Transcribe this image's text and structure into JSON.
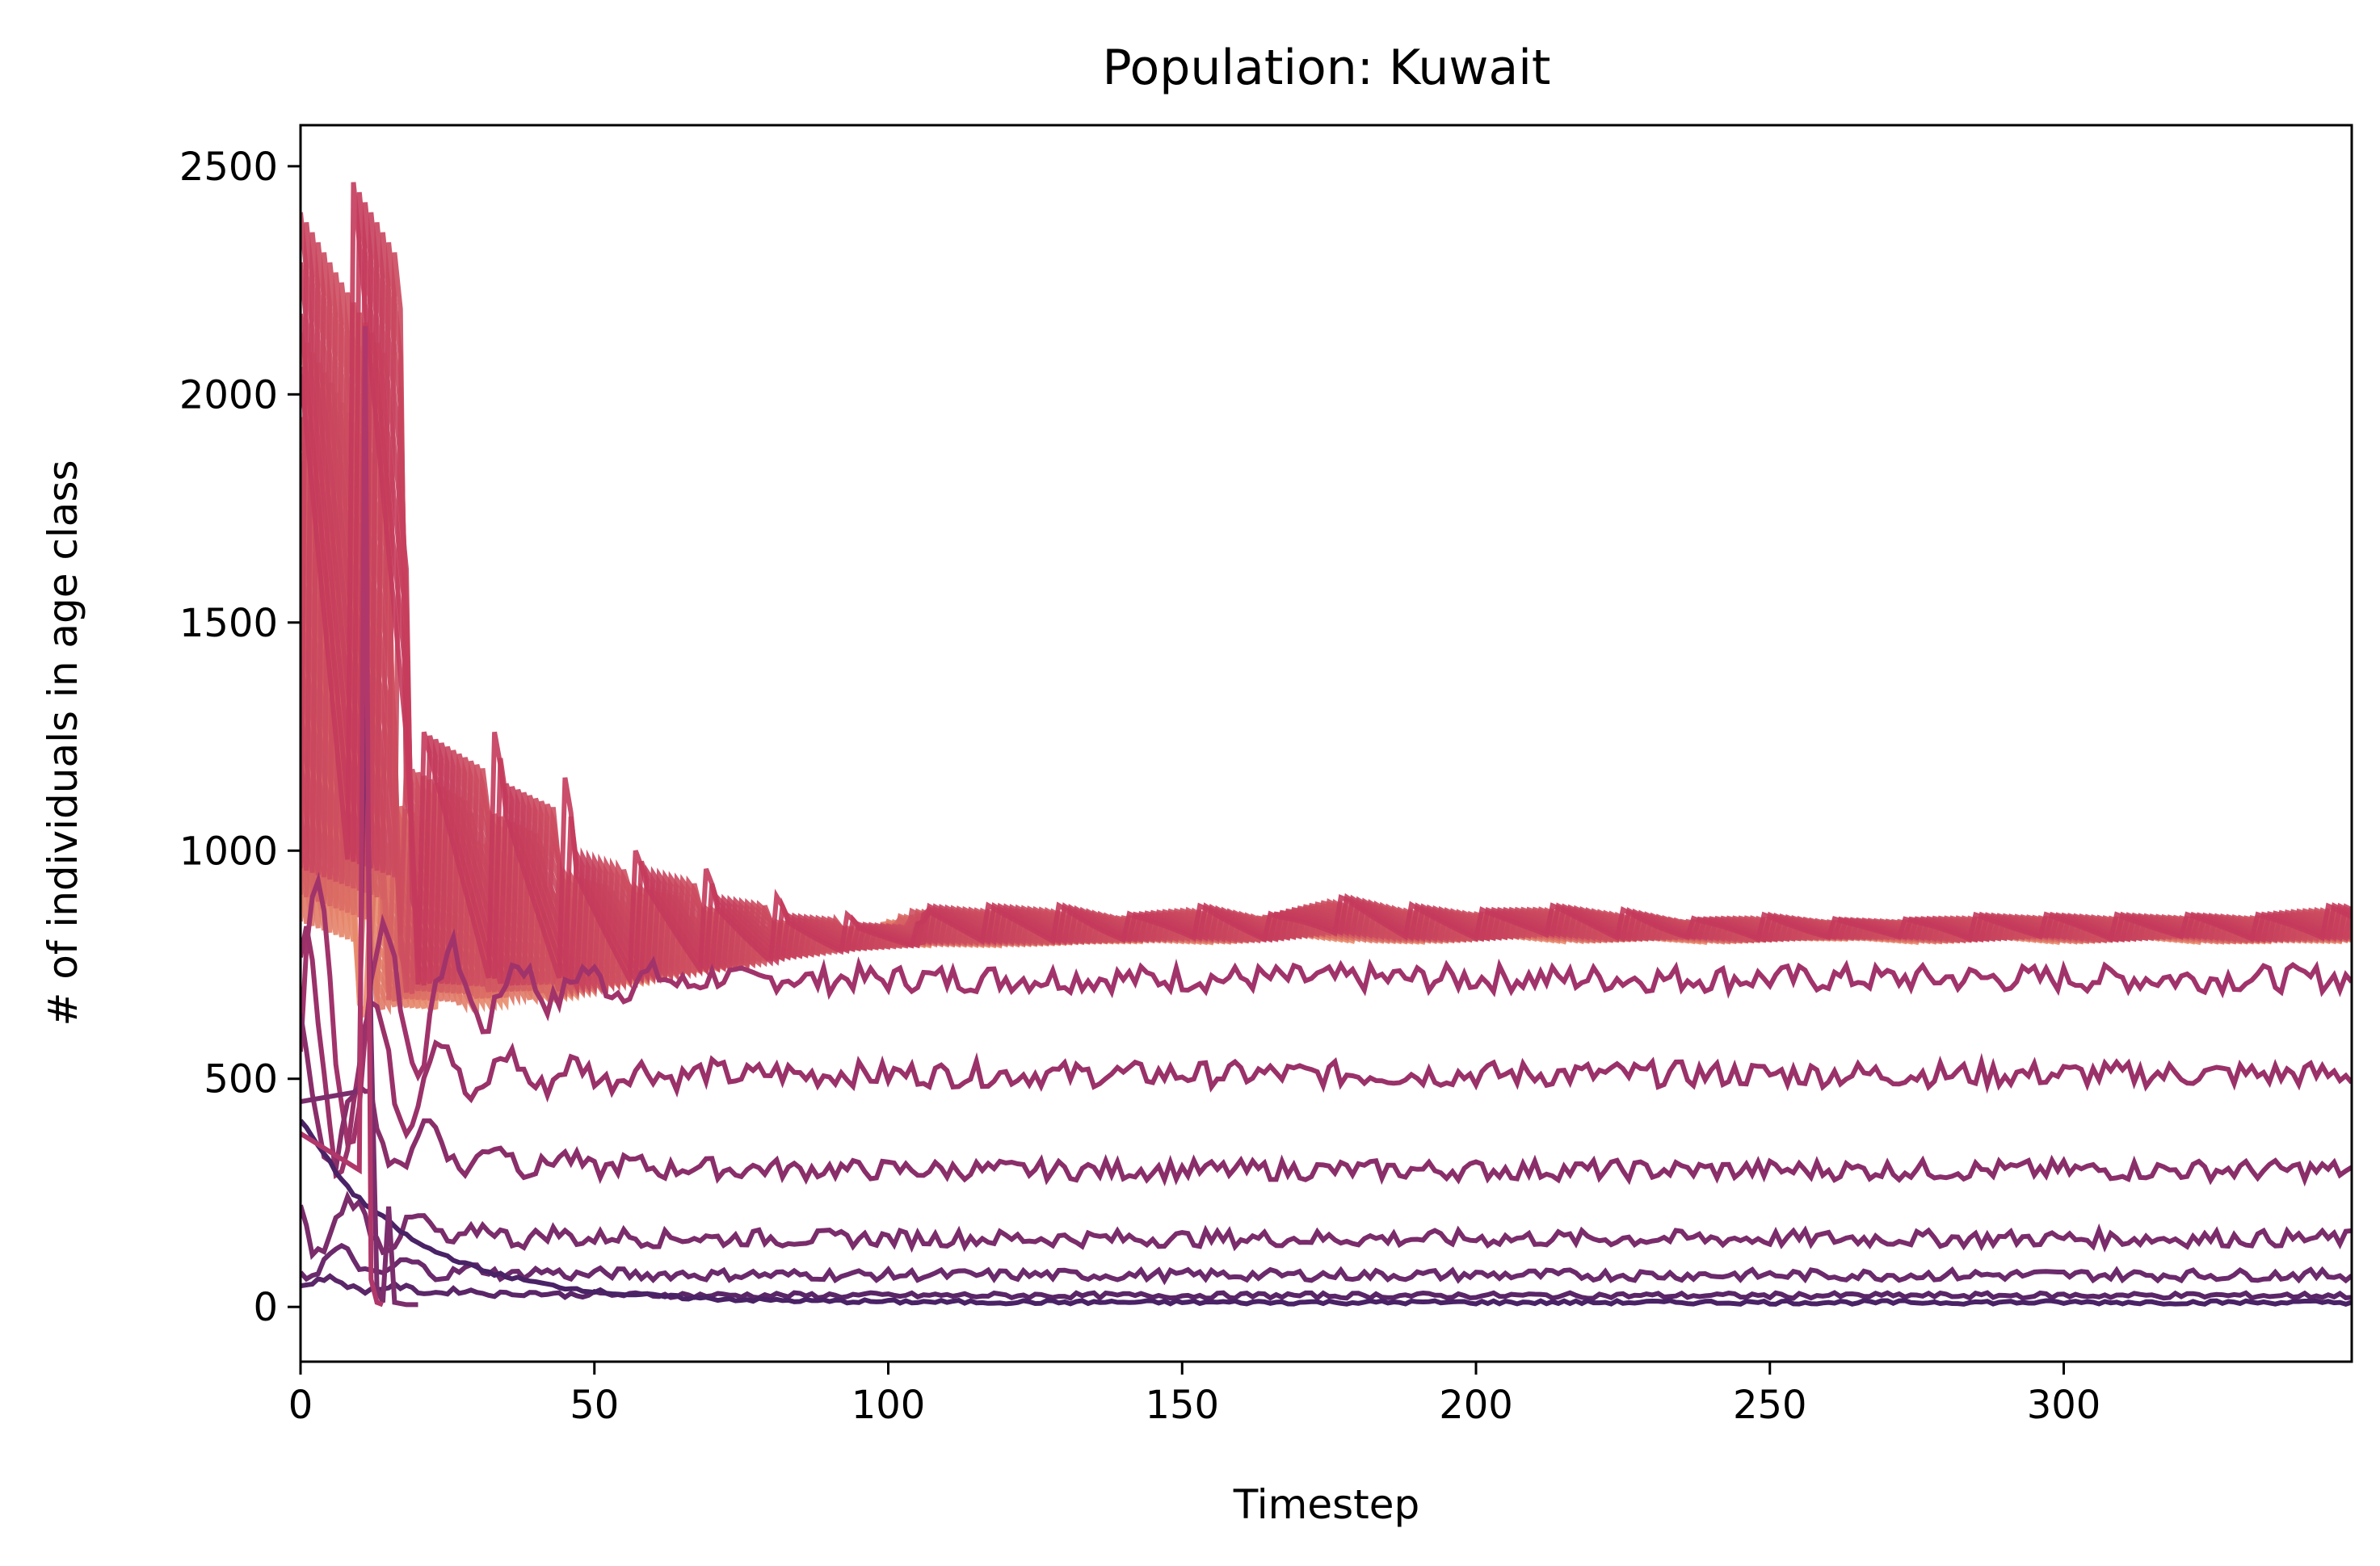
{
  "chart_data": {
    "type": "line",
    "title": "Population: Kuwait",
    "xlabel": "Timestep",
    "ylabel": "# of individuals in age class",
    "xlim": [
      0,
      349
    ],
    "ylim": [
      -120,
      2590
    ],
    "x_ticks": [
      0,
      50,
      100,
      150,
      200,
      250,
      300
    ],
    "y_ticks": [
      0,
      500,
      1000,
      1500,
      2000,
      2500
    ],
    "grid": false,
    "legend": "none",
    "colormap": "flare",
    "colors": {
      "oldest_class": "#e98d6b",
      "upper_band": "#d4435a",
      "middle_band": "#a1336b",
      "lower_band": "#6b2a6b",
      "youngest_class": "#4a2266"
    },
    "upper_band": {
      "description_levels": "approximate envelope of the many stacked oldest age classes",
      "x": [
        0,
        9,
        10,
        12,
        13,
        24,
        25,
        36,
        37,
        48,
        49,
        60,
        61,
        72,
        73,
        84,
        85,
        96,
        97,
        108,
        120,
        132,
        144,
        156,
        168,
        180,
        192,
        204,
        216,
        228,
        240,
        252,
        264,
        276,
        288,
        300,
        312,
        324,
        336,
        349
      ],
      "top": [
        2465,
        2465,
        1260,
        1260,
        1260,
        1260,
        1160,
        1160,
        1000,
        1000,
        960,
        960,
        900,
        900,
        860,
        860,
        840,
        840,
        880,
        880,
        880,
        860,
        880,
        860,
        900,
        880,
        870,
        880,
        870,
        850,
        860,
        850,
        850,
        860,
        860,
        860,
        860,
        860,
        880,
        880
      ],
      "bottom": [
        560,
        560,
        550,
        550,
        560,
        570,
        580,
        600,
        620,
        640,
        660,
        680,
        700,
        720,
        740,
        760,
        770,
        780,
        780,
        780,
        780,
        790,
        790,
        790,
        800,
        790,
        790,
        800,
        790,
        800,
        790,
        800,
        800,
        790,
        800,
        790,
        800,
        790,
        790,
        790
      ]
    },
    "series": [
      {
        "level": 720,
        "start": 560,
        "amp": 30,
        "color": "#a1336b"
      },
      {
        "level": 510,
        "start": 520,
        "amp": 28,
        "color": "#9a3169"
      },
      {
        "level": 300,
        "start": 480,
        "amp": 22,
        "color": "#8a2e6a"
      },
      {
        "level": 150,
        "start": 200,
        "amp": 18,
        "color": "#7a2c6b"
      },
      {
        "level": 70,
        "start": 110,
        "amp": 12,
        "color": "#6b2a6b"
      },
      {
        "level": 25,
        "start": 60,
        "amp": 6,
        "color": "#5a2668"
      },
      {
        "level": 10,
        "start": 410,
        "amp": 4,
        "color": "#4a2266"
      }
    ],
    "spike_series": {
      "x": [
        0,
        9,
        10,
        11,
        12,
        13,
        14,
        15,
        16,
        18,
        20
      ],
      "y": [
        450,
        470,
        480,
        1520,
        600,
        40,
        10,
        220,
        10,
        5,
        5
      ],
      "color": "#7b2d6c"
    },
    "spike_series_2": {
      "x": [
        0,
        10,
        11,
        12,
        13,
        14
      ],
      "y": [
        380,
        300,
        2150,
        60,
        10,
        5
      ],
      "color": "#b0376a"
    }
  }
}
